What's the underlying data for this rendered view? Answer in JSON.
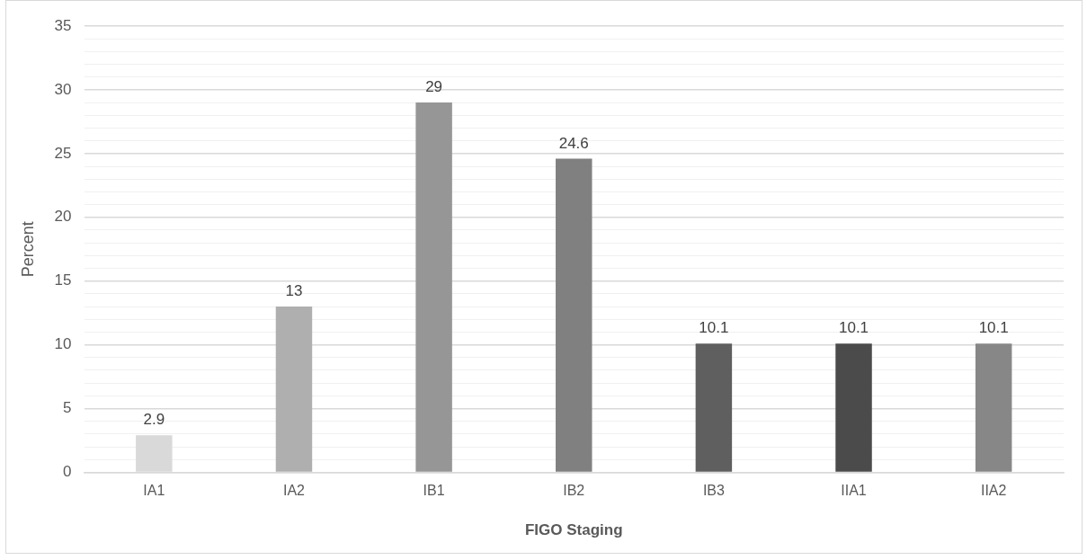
{
  "chart_data": {
    "type": "bar",
    "xlabel": "FIGO Staging",
    "ylabel": "Percent",
    "categories": [
      "IA1",
      "IA2",
      "IB1",
      "IB2",
      "IB3",
      "IIA1",
      "IIA2"
    ],
    "values": [
      2.9,
      13,
      29,
      24.6,
      10.1,
      10.1,
      10.1
    ],
    "colors": [
      "#d9d9d9",
      "#afafaf",
      "#969696",
      "#808080",
      "#5f5f5f",
      "#4b4b4b",
      "#878787"
    ],
    "ylim": [
      0,
      35
    ],
    "yticks": [
      0,
      {
        "value": 1,
        "label": null
      },
      {
        "value": 2,
        "label": null
      },
      {
        "value": 3,
        "label": null
      },
      {
        "value": 4,
        "label": null
      },
      5,
      {
        "value": 6,
        "label": null
      },
      {
        "value": 7,
        "label": null
      },
      {
        "value": 8,
        "label": null
      },
      {
        "value": 9,
        "label": null
      },
      10,
      {
        "value": 11,
        "label": null
      },
      {
        "value": 12,
        "label": null
      },
      {
        "value": 13,
        "label": null
      },
      {
        "value": 14,
        "label": null
      },
      15,
      {
        "value": 16,
        "label": null
      },
      {
        "value": 17,
        "label": null
      },
      {
        "value": 18,
        "label": null
      },
      {
        "value": 19,
        "label": null
      },
      20,
      {
        "value": 21,
        "label": null
      },
      {
        "value": 22,
        "label": null
      },
      {
        "value": 23,
        "label": null
      },
      {
        "value": 24,
        "label": null
      },
      25,
      {
        "value": 26,
        "label": null
      },
      {
        "value": 27,
        "label": null
      },
      {
        "value": 28,
        "label": null
      },
      {
        "value": 29,
        "label": null
      },
      30,
      {
        "value": 31,
        "label": null
      },
      {
        "value": 32,
        "label": null
      },
      {
        "value": 33,
        "label": null
      },
      {
        "value": 34,
        "label": null
      },
      35
    ],
    "grid": "y",
    "legend": false,
    "data_labels": true
  }
}
